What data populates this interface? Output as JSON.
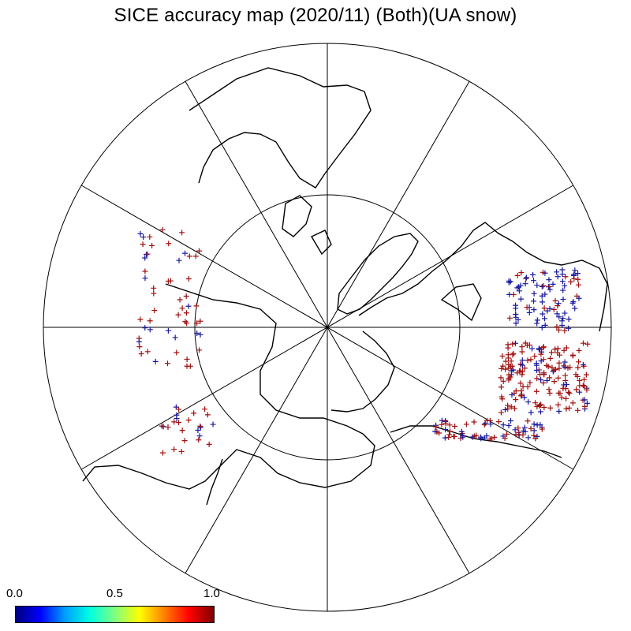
{
  "title": "SICE accuracy map (2020/11) (Both)(UA snow)",
  "colorbar": {
    "min_label": "0.0",
    "mid_label": "0.5",
    "max_label": "1.0",
    "min": 0.0,
    "max": 1.0,
    "colormap": "rainbow (dark blue to dark red)",
    "stops": [
      "#000080",
      "#0000ff",
      "#00a0ff",
      "#00ffe0",
      "#80ff80",
      "#ffff00",
      "#ff8000",
      "#ff0000",
      "#800000"
    ]
  },
  "map": {
    "projection": "north polar stereographic",
    "graticule": {
      "meridian_step_deg": 30,
      "parallels_drawn": 1
    },
    "land_outline_color": "#000000",
    "marker": "plus",
    "marker_colors": {
      "low": "#1a1aa0",
      "high": "#a01010"
    }
  }
}
